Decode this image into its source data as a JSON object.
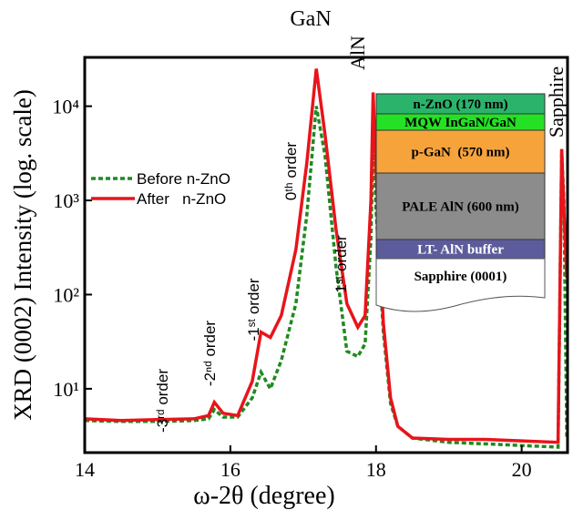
{
  "chart_data": {
    "type": "line",
    "xlabel": "ω-2θ (degree)",
    "ylabel": "XRD (0002) Intensity (log. scale)",
    "log_y": true,
    "xlim": [
      14,
      20.63
    ],
    "ylim": [
      2.1,
      33000
    ],
    "xticks": [
      14,
      16,
      18,
      20
    ],
    "yticks": [
      {
        "value": 10,
        "label": "10¹"
      },
      {
        "value": 100,
        "label": "10²"
      },
      {
        "value": 1000,
        "label": "10³"
      },
      {
        "value": 10000,
        "label": "10⁴"
      }
    ],
    "legend": "upper left",
    "x": [
      14,
      14.5,
      15,
      15.5,
      15.7,
      15.78,
      15.9,
      16.1,
      16.3,
      16.42,
      16.55,
      16.7,
      16.9,
      17.05,
      17.18,
      17.3,
      17.45,
      17.6,
      17.75,
      17.85,
      17.93,
      17.96,
      18.0,
      18.1,
      18.2,
      18.3,
      18.5,
      19,
      19.5,
      20,
      20.5,
      20.55,
      20.58,
      20.62
    ],
    "series": [
      {
        "name": "Before n-ZnO",
        "color": "#1f8a1f",
        "dash": true,
        "values": [
          4.6,
          4.5,
          4.5,
          4.6,
          4.8,
          6,
          5,
          5,
          8,
          15,
          10,
          20,
          80,
          700,
          10000,
          3000,
          200,
          25,
          22,
          30,
          400,
          4500,
          800,
          40,
          7,
          4,
          3,
          2.7,
          2.6,
          2.5,
          2.4,
          3500,
          1000,
          3
        ]
      },
      {
        "name": "After   n-ZnO",
        "color": "#e8141b",
        "dash": false,
        "values": [
          4.8,
          4.6,
          4.7,
          4.8,
          5.2,
          7.2,
          5.5,
          5.2,
          12,
          40,
          35,
          60,
          300,
          2500,
          25000,
          5000,
          500,
          80,
          45,
          60,
          1000,
          14000,
          2000,
          50,
          8,
          4,
          3,
          2.9,
          2.9,
          2.8,
          2.7,
          3500,
          800,
          150
        ]
      }
    ],
    "annotations": [
      "GaN",
      "AlN",
      "Sapphire",
      "-3ʳᵈ order",
      "-2ⁿᵈ order",
      "-1ˢᵗ order",
      "0ᵗʰ order",
      "1ˢᵗ order"
    ],
    "inset_layers": [
      {
        "label": "n-ZnO (170 nm)",
        "color": "#2bb36c"
      },
      {
        "label": "MQW InGaN/GaN",
        "color": "#25e125"
      },
      {
        "label": "p-GaN  (570 nm)",
        "color": "#f7a33c"
      },
      {
        "label": "PALE AlN (600 nm)",
        "color": "#8c8c8c"
      },
      {
        "label": "LT- AlN buffer",
        "color": "#5c5c9c"
      },
      {
        "label": "Sapphire (0001)",
        "color": "#ffffff"
      }
    ]
  }
}
